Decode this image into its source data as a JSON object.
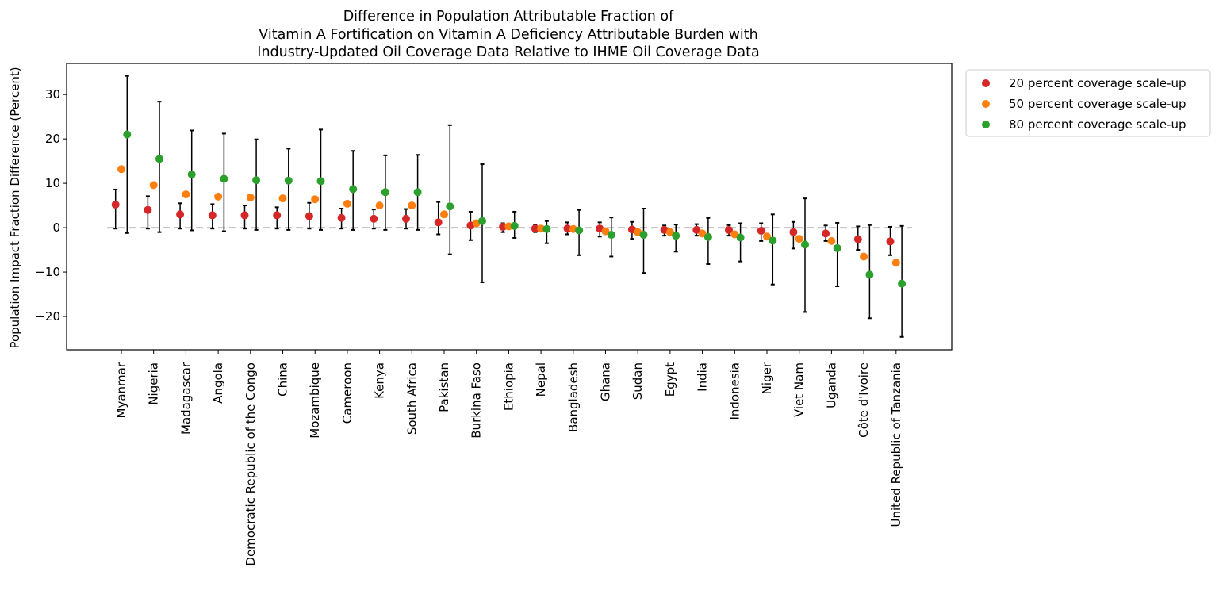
{
  "chart_data": {
    "type": "scatter",
    "title_lines": [
      "Difference in Population Attributable Fraction of",
      "Vitamin A Fortification on Vitamin A Deficiency Attributable Burden with",
      "Industry-Updated Oil Coverage Data Relative to IHME Oil Coverage Data"
    ],
    "xlabel": "",
    "ylabel": "Population Impact Fraction Difference (Percent)",
    "ylim": [
      -27.5,
      37.0
    ],
    "yticks": [
      -20,
      -10,
      0,
      10,
      20,
      30
    ],
    "reference_line": 0,
    "grid": false,
    "legend_position": "outside-top-right",
    "categories": [
      "Myanmar",
      "Nigeria",
      "Madagascar",
      "Angola",
      "Democratic Republic of the Congo",
      "China",
      "Mozambique",
      "Cameroon",
      "Kenya",
      "South Africa",
      "Pakistan",
      "Burkina Faso",
      "Ethiopia",
      "Nepal",
      "Bangladesh",
      "Ghana",
      "Sudan",
      "Egypt",
      "India",
      "Indonesia",
      "Niger",
      "Viet Nam",
      "Uganda",
      "Côte d'Ivoire",
      "United Republic of Tanzania"
    ],
    "series": [
      {
        "name": "20 percent coverage scale-up",
        "color": "#d62728",
        "values": [
          5.2,
          4.0,
          3.0,
          2.8,
          2.8,
          2.8,
          2.6,
          2.2,
          2.0,
          2.0,
          1.2,
          0.5,
          0.2,
          -0.2,
          -0.2,
          -0.2,
          -0.4,
          -0.5,
          -0.5,
          -0.5,
          -0.7,
          -1.0,
          -1.3,
          -2.6,
          -3.1
        ],
        "lower": [
          -0.2,
          -0.2,
          -0.2,
          -0.2,
          -0.2,
          -0.2,
          -0.2,
          -0.2,
          -0.2,
          -0.2,
          -1.5,
          -2.8,
          -1.0,
          -1.0,
          -1.5,
          -2.0,
          -2.5,
          -1.8,
          -1.8,
          -1.8,
          -3.0,
          -4.7,
          -3.0,
          -5.0,
          -6.2
        ],
        "upper": [
          8.6,
          7.1,
          5.5,
          5.3,
          5.0,
          4.6,
          5.6,
          4.3,
          4.1,
          4.2,
          5.8,
          3.6,
          1.0,
          0.7,
          1.2,
          1.2,
          1.3,
          0.5,
          0.8,
          0.6,
          1.0,
          1.3,
          0.5,
          0.3,
          0.2
        ]
      },
      {
        "name": "50 percent coverage scale-up",
        "color": "#ff7f0e",
        "values": [
          13.2,
          9.6,
          7.5,
          7.0,
          6.8,
          6.6,
          6.4,
          5.4,
          5.0,
          5.0,
          3.0,
          1.0,
          0.3,
          -0.2,
          -0.3,
          -0.8,
          -1.0,
          -1.0,
          -1.3,
          -1.5,
          -2.0,
          -2.5,
          -3.0,
          -6.5,
          -7.9
        ]
      },
      {
        "name": "80 percent coverage scale-up",
        "color": "#2ca02c",
        "values": [
          21.0,
          15.5,
          12.0,
          11.0,
          10.7,
          10.6,
          10.5,
          8.7,
          8.0,
          8.0,
          4.8,
          1.5,
          0.4,
          -0.3,
          -0.6,
          -1.6,
          -1.6,
          -1.8,
          -2.1,
          -2.2,
          -2.9,
          -3.8,
          -4.6,
          -10.6,
          -12.6
        ],
        "lower": [
          -1.2,
          -1.0,
          -0.6,
          -0.8,
          -0.5,
          -0.5,
          -0.5,
          -0.5,
          -0.5,
          -0.5,
          -6.0,
          -12.3,
          -2.3,
          -3.5,
          -6.2,
          -6.5,
          -10.2,
          -5.4,
          -8.2,
          -7.6,
          -12.8,
          -19.0,
          -13.2,
          -20.4,
          -24.6
        ],
        "upper": [
          34.2,
          28.4,
          21.9,
          21.2,
          19.9,
          17.8,
          22.1,
          17.3,
          16.3,
          16.4,
          23.1,
          14.3,
          3.6,
          1.5,
          4.0,
          2.3,
          4.3,
          0.7,
          2.2,
          1.0,
          3.0,
          6.6,
          1.1,
          0.6,
          0.4
        ]
      }
    ]
  }
}
